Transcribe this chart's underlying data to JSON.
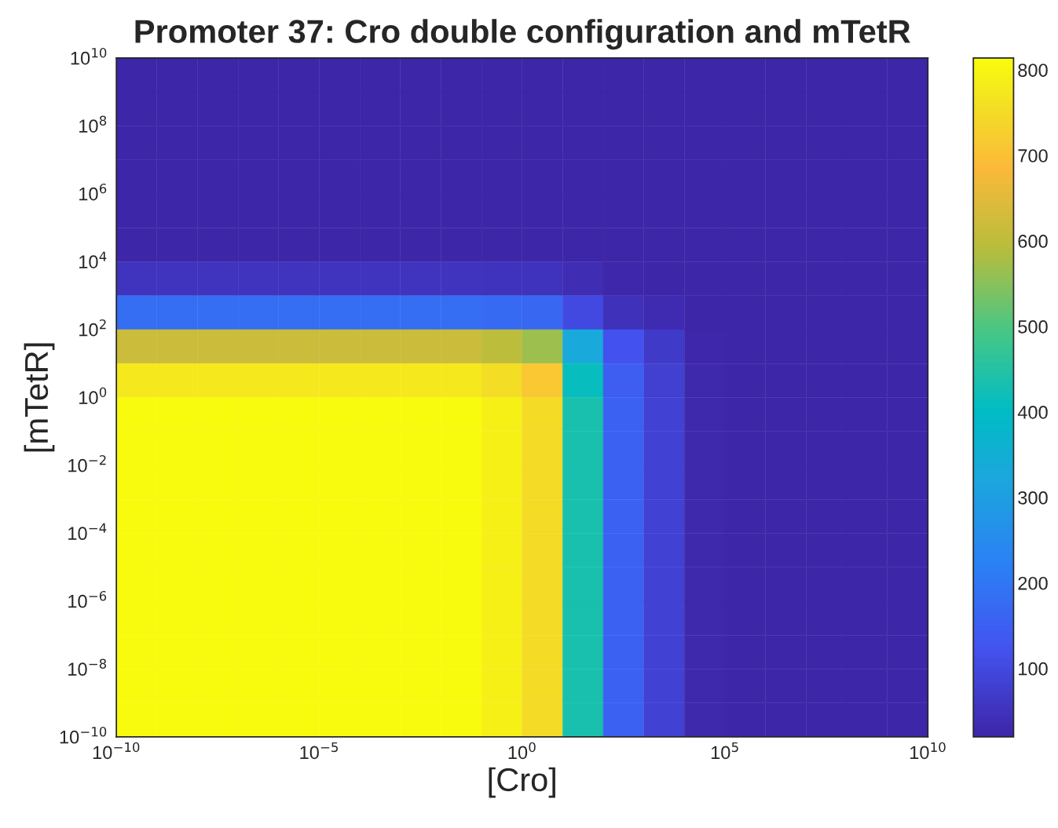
{
  "chart_data": {
    "type": "heatmap",
    "title": "Promoter 37: Cro double configuration and mTetR",
    "xlabel": "[Cro]",
    "ylabel": "[mTetR]",
    "log": "xy",
    "grid": false,
    "x": [
      3.16e-10,
      3.16e-09,
      3.16e-08,
      3.16e-07,
      3.16e-06,
      3.16e-05,
      0.000316,
      0.00316,
      0.0316,
      0.316,
      3.16,
      31.6,
      316,
      3160,
      31600,
      316000,
      3160000,
      31600000,
      316000000,
      3160000000
    ],
    "y": [
      3160000000,
      316000000,
      31600000,
      3160000,
      316000,
      31600,
      3160,
      316,
      31.6,
      3.16,
      0.316,
      0.0316,
      0.00316,
      0.000316,
      3.16e-05,
      3.16e-06,
      3.16e-07,
      3.16e-08,
      3.16e-09,
      3.16e-10
    ],
    "cells": [
      [
        20,
        20,
        20,
        20,
        20,
        20,
        20,
        20,
        20,
        20,
        20,
        20,
        20,
        20,
        20,
        20,
        20,
        20,
        20,
        20
      ],
      [
        20,
        20,
        20,
        20,
        20,
        20,
        20,
        20,
        20,
        20,
        20,
        20,
        20,
        20,
        20,
        20,
        20,
        20,
        20,
        20
      ],
      [
        20,
        20,
        20,
        20,
        20,
        20,
        20,
        20,
        20,
        20,
        20,
        20,
        20,
        20,
        20,
        20,
        20,
        20,
        20,
        20
      ],
      [
        20,
        20,
        20,
        20,
        20,
        20,
        20,
        20,
        20,
        20,
        20,
        20,
        20,
        20,
        20,
        20,
        20,
        20,
        20,
        20
      ],
      [
        20,
        20,
        20,
        20,
        20,
        20,
        20,
        20,
        20,
        20,
        20,
        20,
        20,
        20,
        20,
        20,
        20,
        20,
        20,
        20
      ],
      [
        20,
        20,
        20,
        20,
        20,
        20,
        20,
        20,
        20,
        20,
        20,
        20,
        20,
        20,
        20,
        20,
        20,
        20,
        20,
        20
      ],
      [
        52,
        52,
        52,
        52,
        52,
        52,
        52,
        52,
        52,
        51,
        49,
        37,
        25,
        22,
        20,
        20,
        20,
        20,
        20,
        20
      ],
      [
        179,
        179,
        179,
        179,
        179,
        179,
        179,
        179,
        179,
        174,
        166,
        103,
        47,
        33,
        22,
        20,
        20,
        20,
        20,
        20
      ],
      [
        616,
        616,
        616,
        616,
        616,
        616,
        616,
        616,
        616,
        598,
        568,
        330,
        121,
        68,
        26,
        20,
        20,
        20,
        20,
        20
      ],
      [
        774,
        774,
        774,
        774,
        774,
        774,
        774,
        774,
        774,
        752,
        714,
        412,
        148,
        81,
        28,
        20,
        20,
        20,
        20,
        20
      ],
      [
        814,
        814,
        814,
        814,
        814,
        814,
        814,
        814,
        814,
        790,
        750,
        433,
        155,
        84,
        28,
        20,
        20,
        20,
        20,
        20
      ],
      [
        814,
        814,
        814,
        814,
        814,
        814,
        814,
        814,
        814,
        790,
        750,
        433,
        155,
        84,
        28,
        20,
        20,
        20,
        20,
        20
      ],
      [
        814,
        814,
        814,
        814,
        814,
        814,
        814,
        814,
        814,
        790,
        750,
        433,
        155,
        84,
        28,
        20,
        20,
        20,
        20,
        20
      ],
      [
        814,
        814,
        814,
        814,
        814,
        814,
        814,
        814,
        814,
        790,
        750,
        433,
        155,
        84,
        28,
        20,
        20,
        20,
        20,
        20
      ],
      [
        814,
        814,
        814,
        814,
        814,
        814,
        814,
        814,
        814,
        790,
        750,
        433,
        155,
        84,
        28,
        20,
        20,
        20,
        20,
        20
      ],
      [
        814,
        814,
        814,
        814,
        814,
        814,
        814,
        814,
        814,
        790,
        750,
        433,
        155,
        84,
        28,
        20,
        20,
        20,
        20,
        20
      ],
      [
        814,
        814,
        814,
        814,
        814,
        814,
        814,
        814,
        814,
        790,
        750,
        433,
        155,
        84,
        28,
        20,
        20,
        20,
        20,
        20
      ],
      [
        814,
        814,
        814,
        814,
        814,
        814,
        814,
        814,
        814,
        790,
        750,
        433,
        155,
        84,
        28,
        20,
        20,
        20,
        20,
        20
      ],
      [
        814,
        814,
        814,
        814,
        814,
        814,
        814,
        814,
        814,
        790,
        750,
        433,
        155,
        84,
        28,
        20,
        20,
        20,
        20,
        20
      ],
      [
        814,
        814,
        814,
        814,
        814,
        814,
        814,
        814,
        814,
        790,
        750,
        433,
        155,
        84,
        28,
        20,
        20,
        20,
        20,
        20
      ]
    ],
    "xlim": [
      1e-10,
      10000000000.0
    ],
    "ylim": [
      1e-10,
      10000000000.0
    ],
    "xticks": [
      {
        "value": 1e-10,
        "label": "10$^{−10}$"
      },
      {
        "value": 1e-05,
        "label": "10$^{−5}$"
      },
      {
        "value": 1,
        "label": "10$^{0}$"
      },
      {
        "value": 100000.0,
        "label": "10$^{5}$"
      },
      {
        "value": 10000000000.0,
        "label": "10$^{10}$"
      }
    ],
    "yticks": [
      {
        "value": 1e-10,
        "label": "10$^{−10}$"
      },
      {
        "value": 1e-08,
        "label": "10$^{−8}$"
      },
      {
        "value": 1e-06,
        "label": "10$^{−6}$"
      },
      {
        "value": 0.0001,
        "label": "10$^{−4}$"
      },
      {
        "value": 0.01,
        "label": "10$^{−2}$"
      },
      {
        "value": 1,
        "label": "10$^{0}$"
      },
      {
        "value": 100,
        "label": "10$^{2}$"
      },
      {
        "value": 10000,
        "label": "10$^{4}$"
      },
      {
        "value": 1000000.0,
        "label": "10$^{6}$"
      },
      {
        "value": 100000000.0,
        "label": "10$^{8}$"
      },
      {
        "value": 10000000000.0,
        "label": "10$^{10}$"
      }
    ],
    "clim": [
      20,
      814
    ],
    "cticks": [
      100,
      200,
      300,
      400,
      500,
      600,
      700,
      800
    ]
  }
}
